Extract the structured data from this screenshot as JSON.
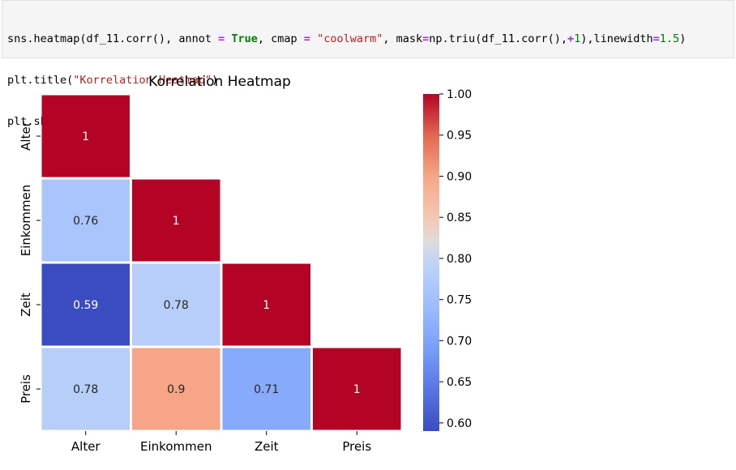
{
  "code_cell": {
    "lines": [
      [
        {
          "t": "sns.heatmap(df_11.corr(), annot ",
          "c": ""
        },
        {
          "t": "=",
          "c": "op"
        },
        {
          "t": " ",
          "c": ""
        },
        {
          "t": "True",
          "c": "kw"
        },
        {
          "t": ", cmap ",
          "c": ""
        },
        {
          "t": "=",
          "c": "op"
        },
        {
          "t": " ",
          "c": ""
        },
        {
          "t": "\"coolwarm\"",
          "c": "str"
        },
        {
          "t": ", mask",
          "c": ""
        },
        {
          "t": "=",
          "c": "op"
        },
        {
          "t": "np.triu(df_11.corr(),",
          "c": ""
        },
        {
          "t": "+",
          "c": "op"
        },
        {
          "t": "1",
          "c": "num"
        },
        {
          "t": "),linewidth",
          "c": ""
        },
        {
          "t": "=",
          "c": "op"
        },
        {
          "t": "1.5",
          "c": "num"
        },
        {
          "t": ")",
          "c": ""
        }
      ],
      [
        {
          "t": "plt.title(",
          "c": ""
        },
        {
          "t": "\"Korrelation Heatmap\"",
          "c": "str"
        },
        {
          "t": ")",
          "c": ""
        }
      ],
      [
        {
          "t": "plt.show()",
          "c": ""
        }
      ]
    ]
  },
  "chart_data": {
    "type": "heatmap",
    "title": "Korrelation Heatmap",
    "labels": [
      "Alter",
      "Einkommen",
      "Zeit",
      "Preis"
    ],
    "matrix": [
      [
        1,
        null,
        null,
        null
      ],
      [
        0.76,
        1,
        null,
        null
      ],
      [
        0.59,
        0.78,
        1,
        null
      ],
      [
        0.78,
        0.9,
        0.71,
        1
      ]
    ],
    "annotations": [
      [
        "1",
        "",
        "",
        ""
      ],
      [
        "0.76",
        "1",
        "",
        ""
      ],
      [
        "0.59",
        "0.78",
        "1",
        ""
      ],
      [
        "0.78",
        "0.9",
        "0.71",
        "1"
      ]
    ],
    "colorbar": {
      "vmin": 0.59,
      "vmax": 1.0,
      "ticks": [
        "0.60",
        "0.65",
        "0.70",
        "0.75",
        "0.80",
        "0.85",
        "0.90",
        "0.95",
        "1.00"
      ],
      "cmap": "coolwarm"
    },
    "mask": "upper triangle",
    "grid": false
  }
}
